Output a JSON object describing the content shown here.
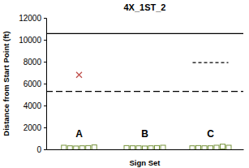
{
  "chart_data": {
    "type": "scatter",
    "title": "4X_1ST_2",
    "x_label": "Sign Set",
    "y_label": "Distance from Start Point (ft)",
    "categories": [
      "A",
      "B",
      "C"
    ],
    "ylim": [
      0,
      12000
    ],
    "yticks": [
      0,
      2000,
      4000,
      6000,
      8000,
      10000,
      12000
    ],
    "series": [
      {
        "marker": "square",
        "color": "#77933c",
        "values": [
          [
            150,
            100,
            80,
            100,
            120,
            180
          ],
          [
            120,
            100,
            100,
            80,
            100,
            120,
            150
          ],
          [
            100,
            120,
            100,
            100,
            150,
            250,
            150
          ]
        ]
      },
      {
        "marker": "x",
        "color": "#c0504d",
        "values": [
          [
            6800
          ],
          [],
          []
        ]
      }
    ],
    "reference_lines": [
      {
        "value": 10560,
        "line_style": "solid",
        "color": "#000000"
      },
      {
        "value": 5280,
        "line_style": "dashed",
        "color": "#000000"
      },
      {
        "value": 7920,
        "line_style": "dashed",
        "color": "#000000",
        "category": "C"
      }
    ]
  }
}
